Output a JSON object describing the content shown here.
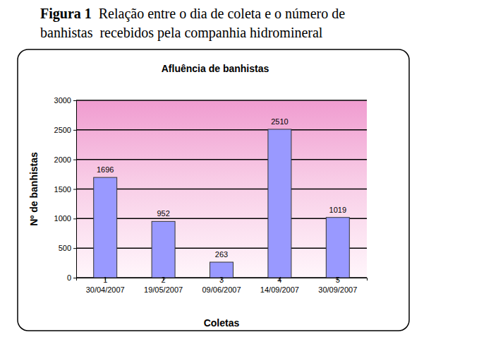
{
  "caption": {
    "label": "Figura 1",
    "lines": [
      "Relação entre o dia de coleta e o número de",
      "banhistas  recebidos pela companhia hidromineral"
    ]
  },
  "chart_data": {
    "type": "bar",
    "title": "Afluência de banhistas",
    "x_label": "Coletas",
    "y_label": "Nº de banhistas",
    "categories": [
      [
        "1",
        "30/04/2007"
      ],
      [
        "2",
        "19/05/2007"
      ],
      [
        "3",
        "09/06/2007"
      ],
      [
        "4",
        "14/09/2007"
      ],
      [
        "5",
        "30/09/2007"
      ]
    ],
    "values": [
      1696,
      952,
      263,
      2510,
      1019
    ],
    "color": "#9999ff",
    "ylim": [
      0,
      3000
    ],
    "yticks": [
      0,
      500,
      1000,
      1500,
      2000,
      2500,
      3000
    ],
    "grid": true,
    "data_labels": true
  }
}
